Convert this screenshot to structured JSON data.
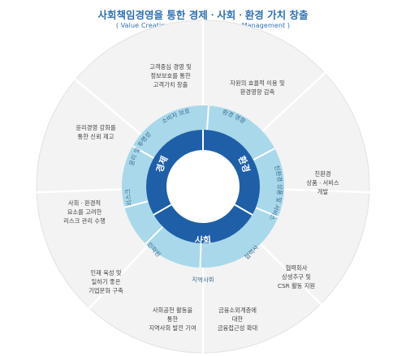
{
  "title": "사회책임경영을 통한 경제ㆍ사회ㆍ환경 가치 창출",
  "subtitle": "( Value Creation through Responsible Management )",
  "colors": {
    "outer_ring": "#f3f3f3",
    "middle_ring": "#a9d8ea",
    "inner_ring": "#1f5fa8",
    "accent_text": "#2f6fb5",
    "middle_text": "#3b6f93",
    "separator": "#ffffff"
  },
  "pillars": [
    {
      "label": "경제"
    },
    {
      "label": "환경"
    },
    {
      "label": "사회"
    }
  ],
  "middle_segments": [
    {
      "label": "소비자 보호"
    },
    {
      "label": "환경 영향"
    },
    {
      "label": "친환경 상품 및 서비스"
    },
    {
      "label": "협력사"
    },
    {
      "label": "지역사회"
    },
    {
      "label": "인적원"
    },
    {
      "label": "리스크"
    },
    {
      "label": "윤리 및 투명성"
    }
  ],
  "outer_segments": [
    {
      "text": "고객중심 경영 및\n정보보호를 통한\n고객가치 창출"
    },
    {
      "text": "자원의 효율적 이용 및\n환경영향 감축"
    },
    {
      "text": "친환경\n상품ㆍ서비스\n개발"
    },
    {
      "text": "협력회사\n상생추구 및\nCSR 활동 지원"
    },
    {
      "text": "금융소외계층에\n대한\n금융접근성 확대"
    },
    {
      "text": "사회공헌 활동을\n통한\n지역사회 발전 기여"
    },
    {
      "text": "인재 육성 및\n일하기 좋은\n기업문화 구축"
    },
    {
      "text": "사회ㆍ환경적\n요소를 고려한\n리스크 관리 수행"
    },
    {
      "text": "윤리경영 강화를\n통한 신뢰 제고"
    }
  ]
}
